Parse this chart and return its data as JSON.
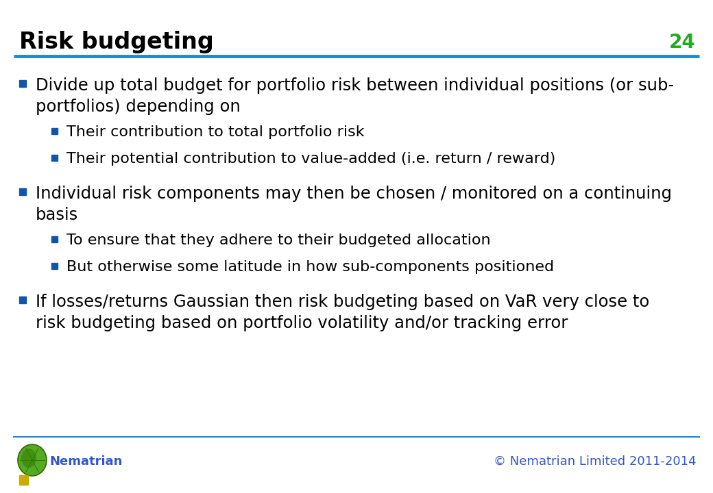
{
  "title": "Risk budgeting",
  "slide_number": "24",
  "title_color": "#000000",
  "title_fontsize": 24,
  "slide_number_color": "#22aa22",
  "slide_number_fontsize": 20,
  "line_color": "#2288cc",
  "background_color": "#ffffff",
  "bullet_color": "#1155aa",
  "body_text_color": "#000000",
  "body_fontsize": 17.5,
  "sub_body_fontsize": 16,
  "footer_left": "Nematrian",
  "footer_right": "© Nematrian Limited 2011-2014",
  "footer_color": "#3355cc",
  "footer_fontsize": 13,
  "bullets": [
    {
      "level": 1,
      "text": "Divide up total budget for portfolio risk between individual positions (or sub-\nportfolios) depending on"
    },
    {
      "level": 2,
      "text": "Their contribution to total portfolio risk"
    },
    {
      "level": 2,
      "text": "Their potential contribution to value-added (i.e. return / reward)"
    },
    {
      "level": 1,
      "text": "Individual risk components may then be chosen / monitored on a continuing\nbasis"
    },
    {
      "level": 2,
      "text": "To ensure that they adhere to their budgeted allocation"
    },
    {
      "level": 2,
      "text": "But otherwise some latitude in how sub-components positioned"
    },
    {
      "level": 1,
      "text": "If losses/returns Gaussian then risk budgeting based on VaR very close to\nrisk budgeting based on portfolio volatility and/or tracking error"
    }
  ]
}
